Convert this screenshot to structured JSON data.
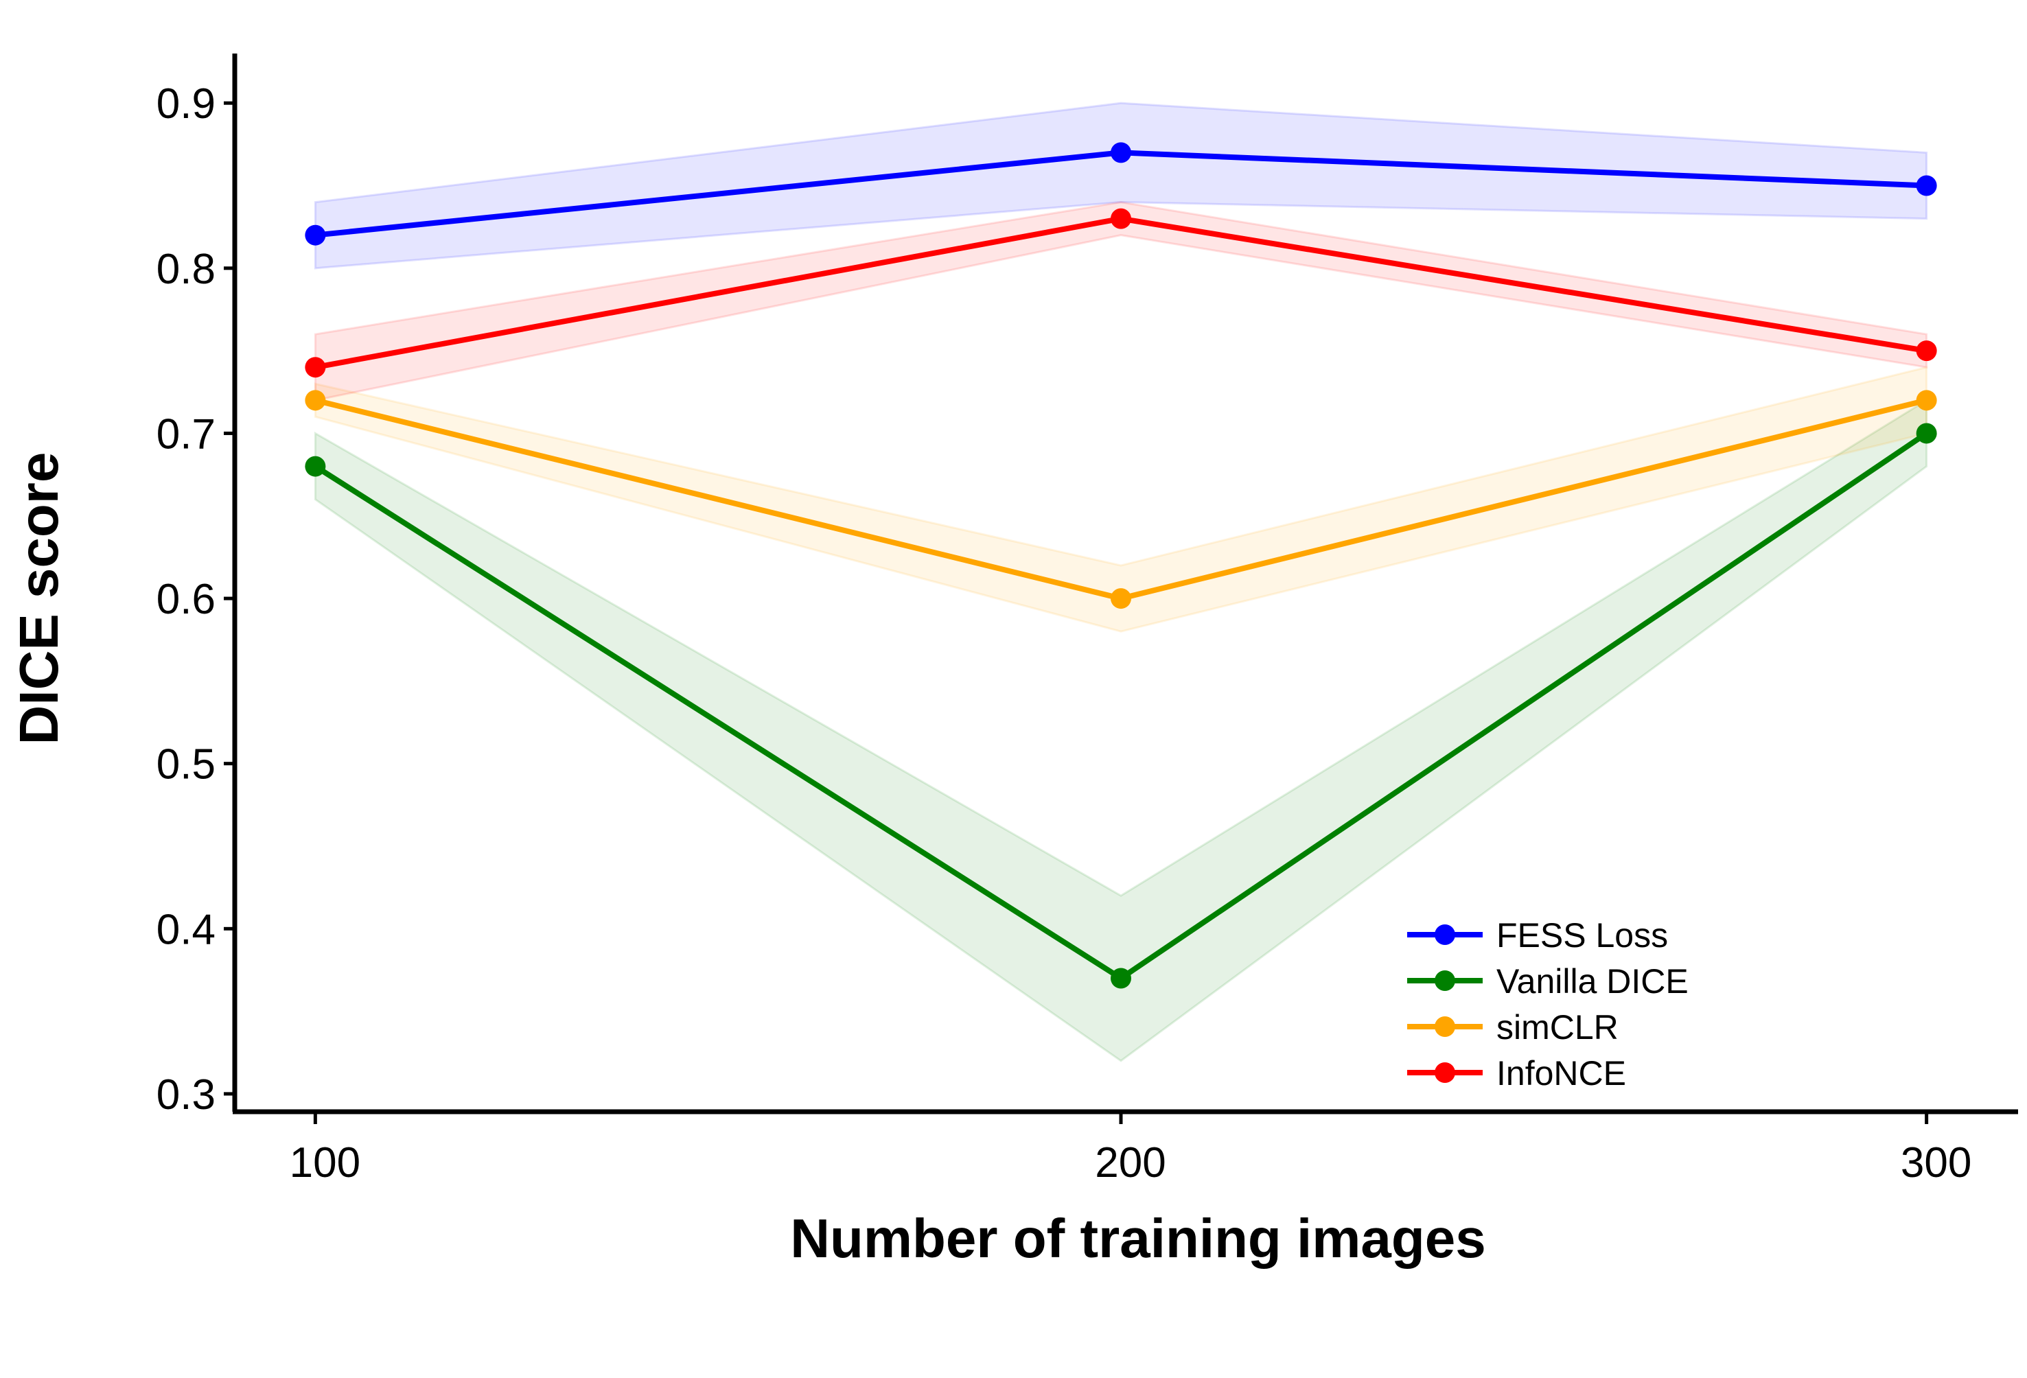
{
  "chart_data": {
    "type": "line",
    "title": "",
    "xlabel": "Number of training images",
    "ylabel": "DICE score",
    "x": [
      100,
      200,
      300
    ],
    "x_ticks": [
      "100",
      "200",
      "300"
    ],
    "y_ticks": [
      "0.3",
      "0.4",
      "0.5",
      "0.6",
      "0.7",
      "0.8",
      "0.9"
    ],
    "y_tick_values": [
      0.3,
      0.4,
      0.5,
      0.6,
      0.7,
      0.8,
      0.9
    ],
    "xlim": [
      90,
      310
    ],
    "ylim": [
      0.29,
      0.93
    ],
    "grid": false,
    "legend_position": "lower-right",
    "series": [
      {
        "name": "FESS Loss",
        "color": "#0000ff",
        "values": [
          0.82,
          0.87,
          0.85
        ],
        "lower": [
          0.8,
          0.84,
          0.83
        ],
        "upper": [
          0.84,
          0.9,
          0.87
        ]
      },
      {
        "name": "Vanilla DICE",
        "color": "#008000",
        "values": [
          0.68,
          0.37,
          0.7
        ],
        "lower": [
          0.66,
          0.32,
          0.68
        ],
        "upper": [
          0.7,
          0.42,
          0.72
        ]
      },
      {
        "name": "simCLR",
        "color": "#ffa500",
        "values": [
          0.72,
          0.6,
          0.72
        ],
        "lower": [
          0.71,
          0.58,
          0.7
        ],
        "upper": [
          0.73,
          0.62,
          0.74
        ]
      },
      {
        "name": "InfoNCE",
        "color": "#ff0000",
        "values": [
          0.74,
          0.83,
          0.75
        ],
        "lower": [
          0.72,
          0.82,
          0.74
        ],
        "upper": [
          0.76,
          0.84,
          0.76
        ]
      }
    ]
  }
}
